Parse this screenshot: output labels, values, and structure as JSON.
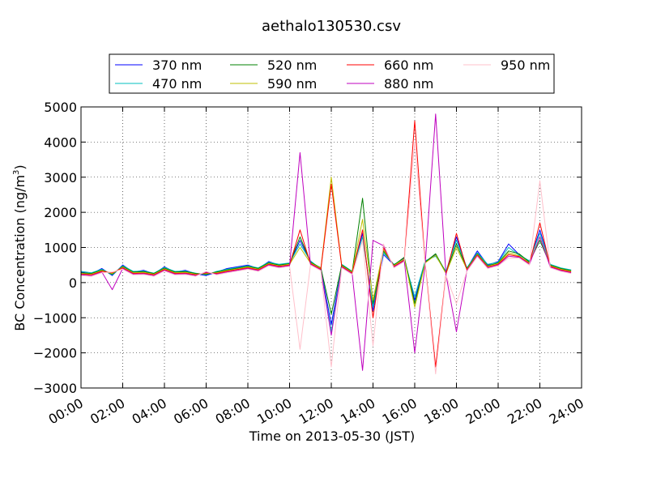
{
  "chart_data": {
    "type": "line",
    "title": "aethalo130530.csv",
    "xlabel": "Time on 2013-05-30 (JST)",
    "ylabel": "BC Concentration (ng/m",
    "ylabel_superscript": "3",
    "ylabel_suffix": ")",
    "xlim": [
      "00:00",
      "24:00"
    ],
    "ylim": [
      -3000,
      5000
    ],
    "x_ticks": [
      "00:00",
      "02:00",
      "04:00",
      "06:00",
      "08:00",
      "10:00",
      "12:00",
      "14:00",
      "16:00",
      "18:00",
      "20:00",
      "22:00",
      "24:00"
    ],
    "y_ticks": [
      -3000,
      -2000,
      -1000,
      0,
      1000,
      2000,
      3000,
      4000,
      5000
    ],
    "grid": true,
    "legend_placement": "top",
    "x": [
      "00:00",
      "00:30",
      "01:00",
      "01:30",
      "02:00",
      "02:30",
      "03:00",
      "03:30",
      "04:00",
      "04:30",
      "05:00",
      "05:30",
      "06:00",
      "06:30",
      "07:00",
      "07:30",
      "08:00",
      "08:30",
      "09:00",
      "09:30",
      "10:00",
      "10:30",
      "11:00",
      "11:30",
      "12:00",
      "12:30",
      "13:00",
      "13:30",
      "14:00",
      "14:30",
      "15:00",
      "15:30",
      "16:00",
      "16:30",
      "17:00",
      "17:30",
      "18:00",
      "18:30",
      "19:00",
      "19:30",
      "20:00",
      "20:30",
      "21:00",
      "21:30",
      "22:00",
      "22:30",
      "23:00",
      "23:30"
    ],
    "series": [
      {
        "name": "370 nm",
        "color": "#0000ff",
        "values": [
          300,
          250,
          400,
          200,
          500,
          300,
          350,
          250,
          450,
          300,
          350,
          250,
          200,
          300,
          400,
          450,
          500,
          400,
          600,
          500,
          550,
          1200,
          600,
          400,
          -1200,
          500,
          300,
          1400,
          -800,
          800,
          500,
          700,
          -500,
          600,
          800,
          300,
          1300,
          400,
          900,
          500,
          600,
          1100,
          800,
          600,
          1500,
          500,
          400,
          350
        ]
      },
      {
        "name": "470 nm",
        "color": "#00bfbf",
        "values": [
          320,
          280,
          380,
          220,
          480,
          320,
          330,
          270,
          430,
          320,
          330,
          270,
          220,
          320,
          380,
          430,
          480,
          420,
          580,
          520,
          560,
          1100,
          620,
          380,
          -1400,
          520,
          320,
          1300,
          -700,
          850,
          520,
          650,
          -400,
          620,
          750,
          320,
          1200,
          420,
          850,
          520,
          580,
          1000,
          780,
          620,
          1400,
          520,
          420,
          360
        ]
      },
      {
        "name": "520 nm",
        "color": "#008000",
        "values": [
          280,
          260,
          360,
          240,
          460,
          300,
          310,
          260,
          410,
          300,
          310,
          260,
          240,
          300,
          360,
          410,
          460,
          400,
          560,
          500,
          540,
          1300,
          580,
          420,
          -900,
          500,
          310,
          2400,
          -600,
          900,
          500,
          720,
          -600,
          580,
          820,
          280,
          1100,
          400,
          820,
          480,
          560,
          900,
          820,
          580,
          1200,
          500,
          400,
          340
        ]
      },
      {
        "name": "590 nm",
        "color": "#bfbf00",
        "values": [
          260,
          240,
          340,
          260,
          440,
          280,
          290,
          240,
          390,
          280,
          290,
          240,
          260,
          280,
          340,
          390,
          440,
          380,
          540,
          480,
          520,
          1000,
          560,
          400,
          3000,
          480,
          290,
          1800,
          -500,
          950,
          480,
          680,
          -700,
          560,
          780,
          260,
          1000,
          380,
          800,
          460,
          540,
          850,
          760,
          560,
          1300,
          480,
          380,
          320
        ]
      },
      {
        "name": "660 nm",
        "color": "#ff0000",
        "values": [
          240,
          220,
          320,
          280,
          420,
          260,
          270,
          220,
          370,
          260,
          270,
          220,
          280,
          260,
          320,
          370,
          420,
          360,
          520,
          460,
          500,
          1500,
          540,
          380,
          2800,
          460,
          270,
          1500,
          -1000,
          1000,
          460,
          640,
          4600,
          540,
          -2400,
          240,
          1400,
          360,
          780,
          440,
          520,
          800,
          740,
          540,
          1700,
          460,
          360,
          300
        ]
      },
      {
        "name": "880 nm",
        "color": "#bf00bf",
        "values": [
          220,
          200,
          300,
          -200,
          400,
          240,
          250,
          200,
          350,
          240,
          250,
          200,
          300,
          240,
          300,
          350,
          400,
          340,
          500,
          440,
          480,
          3700,
          520,
          360,
          -1500,
          440,
          250,
          -2500,
          1200,
          1050,
          440,
          620,
          -2000,
          520,
          4800,
          220,
          -1400,
          340,
          760,
          420,
          500,
          750,
          720,
          520,
          1300,
          440,
          340,
          280
        ]
      },
      {
        "name": "950 nm",
        "color": "#ffc0cb",
        "values": [
          200,
          180,
          280,
          300,
          380,
          220,
          230,
          180,
          330,
          220,
          230,
          180,
          320,
          220,
          280,
          330,
          380,
          320,
          480,
          420,
          460,
          -1900,
          500,
          340,
          -2400,
          420,
          230,
          1200,
          -1800,
          1100,
          420,
          600,
          4000,
          500,
          -2600,
          200,
          -600,
          320,
          740,
          400,
          480,
          700,
          700,
          500,
          2900,
          420,
          320,
          260
        ]
      }
    ]
  }
}
